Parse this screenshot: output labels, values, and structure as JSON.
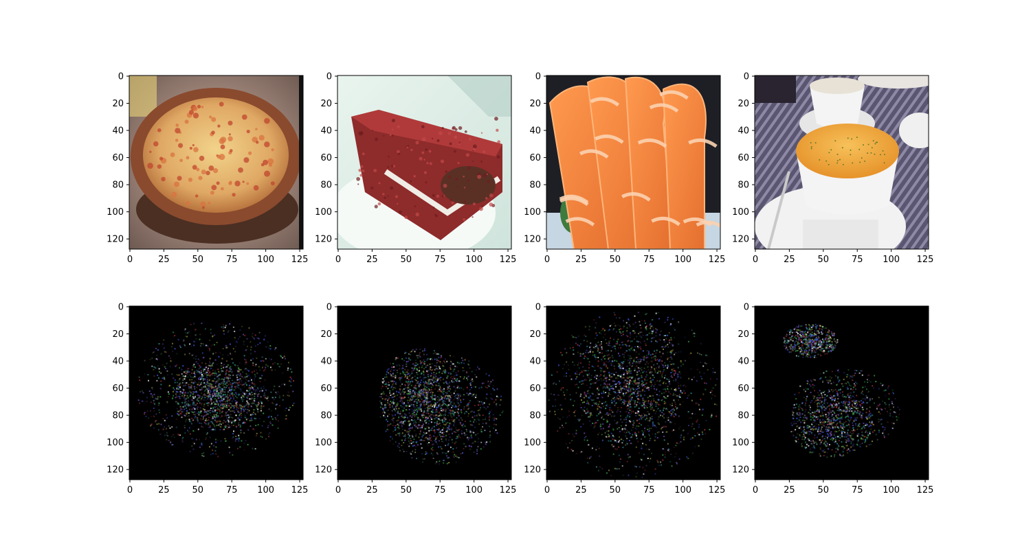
{
  "figure": {
    "layout": {
      "rows": 2,
      "cols": 4
    },
    "image_size": [
      128,
      128
    ],
    "axes": {
      "xticks": [
        0,
        25,
        50,
        75,
        100,
        125
      ],
      "yticks": [
        0,
        20,
        40,
        60,
        80,
        100,
        120
      ]
    },
    "panels": [
      {
        "subject": "pizza",
        "kind": "photo"
      },
      {
        "subject": "red-velvet-cake",
        "kind": "photo"
      },
      {
        "subject": "salmon-sashimi",
        "kind": "photo"
      },
      {
        "subject": "soup-bowls",
        "kind": "photo"
      },
      {
        "subject": "pizza",
        "kind": "saliency"
      },
      {
        "subject": "red-velvet-cake",
        "kind": "saliency"
      },
      {
        "subject": "salmon-sashimi",
        "kind": "saliency"
      },
      {
        "subject": "soup-bowls",
        "kind": "saliency"
      }
    ]
  },
  "colors": {
    "pizza_crust": "#8a4a2e",
    "pizza_cheese": "#e8b96a",
    "pizza_bg": "#c9a8a0",
    "cake_red": "#8e2b2b",
    "cake_cream": "#f0ece6",
    "plate_bg": "#dfeee8",
    "salmon": "#f08a45",
    "salmon_stripe": "#fbd2b0",
    "soup_orange": "#f0a53a",
    "bowl_white": "#f4f4f4",
    "table_stripe": "#4d4a60",
    "saliency_bg": "#000000"
  }
}
